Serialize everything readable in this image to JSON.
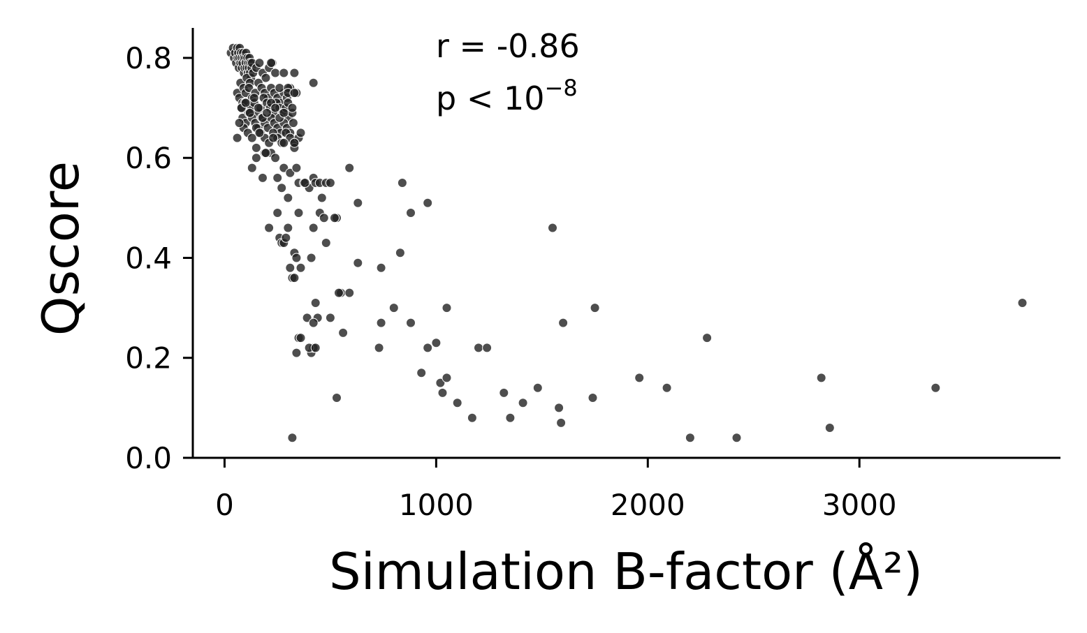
{
  "chart_data": {
    "type": "scatter",
    "title": "",
    "xlabel": "Simulation B-factor (Å²)",
    "ylabel": "Qscore",
    "xlim": [
      -150,
      3950
    ],
    "ylim": [
      0,
      0.86
    ],
    "xticks": [
      0,
      1000,
      2000,
      3000
    ],
    "xtick_labels": [
      "0",
      "1000",
      "2000",
      "3000"
    ],
    "yticks": [
      0.0,
      0.2,
      0.4,
      0.6,
      0.8
    ],
    "ytick_labels": [
      "0.0",
      "0.2",
      "0.4",
      "0.6",
      "0.8"
    ],
    "grid": false,
    "legend": "none",
    "marker_color": "#222222",
    "marker_edge": "#ffffff",
    "annotations": {
      "r_text": "r = -0.86",
      "p_prefix": "p < 10",
      "p_exponent": "−8"
    },
    "series": [
      {
        "x": [
          30,
          40,
          45,
          50,
          55,
          60,
          62,
          65,
          68,
          70,
          72,
          75,
          78,
          80,
          82,
          85,
          88,
          90,
          92,
          95,
          98,
          100,
          102,
          105,
          108,
          110,
          112,
          115,
          118,
          120,
          122,
          125,
          128,
          130,
          60,
          75,
          90,
          105,
          120,
          135,
          150,
          165,
          180,
          195,
          210,
          225,
          240,
          70,
          85,
          100,
          115,
          130,
          145,
          160,
          175,
          190,
          205,
          220,
          235,
          250,
          265,
          280,
          295,
          310,
          80,
          95,
          110,
          125,
          140,
          155,
          170,
          185,
          200,
          215,
          230,
          245,
          260,
          275,
          290,
          305,
          320,
          85,
          100,
          115,
          130,
          145,
          160,
          175,
          190,
          205,
          220,
          235,
          250,
          265,
          280,
          295,
          310,
          325,
          90,
          110,
          130,
          150,
          170,
          190,
          210,
          230,
          250,
          270,
          290,
          310,
          330,
          350,
          60,
          70,
          80,
          100,
          120,
          140,
          160,
          180,
          200,
          220,
          240,
          260,
          280,
          300,
          320,
          340,
          360,
          330,
          230,
          220,
          280,
          330,
          150,
          165,
          240,
          190,
          420,
          220,
          260,
          280,
          300,
          300,
          330,
          330,
          130,
          150,
          180,
          195,
          250,
          270,
          280,
          300,
          310,
          340,
          350,
          375,
          400,
          420,
          430,
          450,
          460,
          480,
          500,
          530,
          590,
          630,
          840,
          880,
          960,
          210,
          250,
          260,
          270,
          280,
          290,
          300,
          310,
          320,
          330,
          340,
          350,
          360,
          380,
          410,
          420,
          450,
          470,
          480,
          520,
          550,
          350,
          360,
          390,
          410,
          420,
          430,
          440,
          500,
          540,
          560,
          590,
          630,
          740,
          800,
          830,
          880,
          960,
          1000,
          1050,
          320,
          340,
          400,
          420,
          430,
          730,
          740,
          930,
          1020,
          1030,
          1050,
          1100,
          1170,
          1200,
          1240,
          1320,
          1350,
          1410,
          1480,
          1580,
          1590,
          1600,
          1740,
          1750,
          1550,
          530,
          330,
          1960,
          2090,
          2200,
          2280,
          2420,
          2820,
          2860,
          3360,
          3770
        ],
        "y": [
          0.81,
          0.82,
          0.8,
          0.81,
          0.79,
          0.82,
          0.8,
          0.81,
          0.78,
          0.8,
          0.82,
          0.79,
          0.81,
          0.8,
          0.78,
          0.79,
          0.81,
          0.8,
          0.77,
          0.78,
          0.8,
          0.79,
          0.81,
          0.78,
          0.8,
          0.77,
          0.79,
          0.78,
          0.8,
          0.77,
          0.79,
          0.76,
          0.78,
          0.79,
          0.73,
          0.75,
          0.74,
          0.76,
          0.75,
          0.77,
          0.78,
          0.79,
          0.77,
          0.76,
          0.78,
          0.79,
          0.77,
          0.72,
          0.71,
          0.73,
          0.74,
          0.72,
          0.73,
          0.75,
          0.74,
          0.73,
          0.72,
          0.74,
          0.73,
          0.72,
          0.71,
          0.73,
          0.72,
          0.74,
          0.7,
          0.71,
          0.69,
          0.7,
          0.71,
          0.69,
          0.7,
          0.72,
          0.71,
          0.7,
          0.69,
          0.71,
          0.7,
          0.69,
          0.7,
          0.68,
          0.69,
          0.68,
          0.67,
          0.69,
          0.68,
          0.67,
          0.66,
          0.68,
          0.67,
          0.66,
          0.68,
          0.67,
          0.66,
          0.65,
          0.67,
          0.66,
          0.65,
          0.67,
          0.66,
          0.65,
          0.64,
          0.66,
          0.65,
          0.64,
          0.63,
          0.65,
          0.64,
          0.63,
          0.65,
          0.64,
          0.63,
          0.64,
          0.64,
          0.67,
          0.7,
          0.71,
          0.69,
          0.72,
          0.7,
          0.68,
          0.69,
          0.71,
          0.7,
          0.68,
          0.69,
          0.71,
          0.7,
          0.73,
          0.65,
          0.62,
          0.64,
          0.61,
          0.63,
          0.63,
          0.62,
          0.65,
          0.6,
          0.61,
          0.75,
          0.79,
          0.74,
          0.77,
          0.74,
          0.73,
          0.73,
          0.77,
          0.58,
          0.6,
          0.56,
          0.61,
          0.56,
          0.54,
          0.58,
          0.52,
          0.57,
          0.58,
          0.55,
          0.55,
          0.54,
          0.56,
          0.55,
          0.55,
          0.52,
          0.55,
          0.55,
          0.48,
          0.58,
          0.51,
          0.55,
          0.49,
          0.51,
          0.46,
          0.49,
          0.44,
          0.43,
          0.43,
          0.44,
          0.46,
          0.38,
          0.36,
          0.41,
          0.4,
          0.49,
          0.38,
          0.55,
          0.4,
          0.46,
          0.49,
          0.48,
          0.43,
          0.48,
          0.33,
          0.24,
          0.24,
          0.28,
          0.21,
          0.22,
          0.31,
          0.28,
          0.28,
          0.33,
          0.25,
          0.33,
          0.39,
          0.38,
          0.3,
          0.41,
          0.27,
          0.22,
          0.23,
          0.3,
          0.04,
          0.21,
          0.22,
          0.27,
          0.22,
          0.22,
          0.27,
          0.17,
          0.15,
          0.13,
          0.16,
          0.11,
          0.08,
          0.22,
          0.22,
          0.13,
          0.08,
          0.11,
          0.14,
          0.1,
          0.07,
          0.27,
          0.12,
          0.3,
          0.46,
          0.12,
          0.36,
          0.16,
          0.14,
          0.04,
          0.24,
          0.04,
          0.16,
          0.06,
          0.14,
          0.31
        ]
      }
    ]
  }
}
